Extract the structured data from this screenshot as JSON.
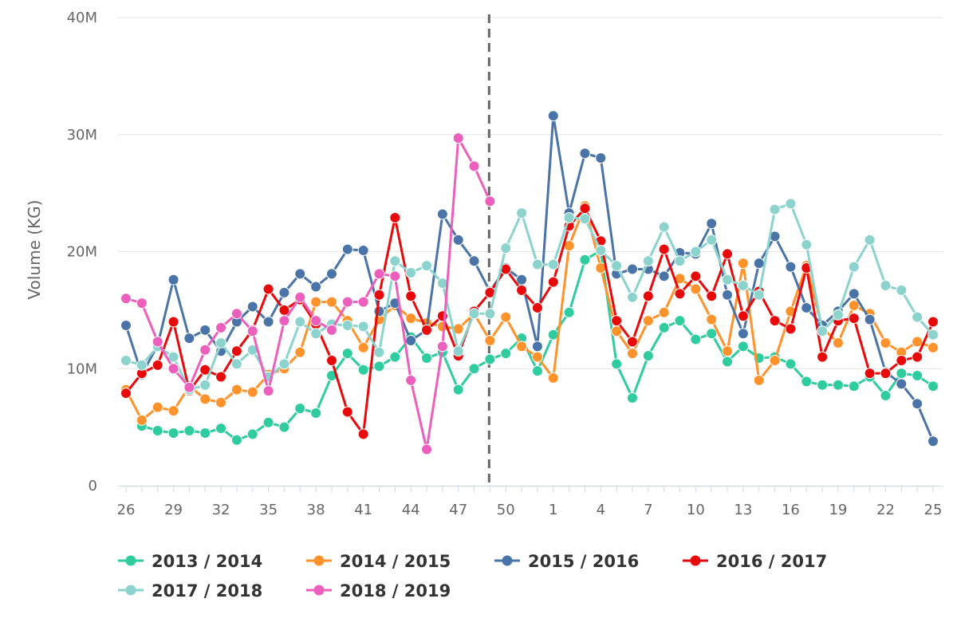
{
  "chart_data": {
    "type": "line",
    "title": "",
    "xlabel": "",
    "ylabel": "Volume (KG)",
    "ylim": [
      0,
      40000000
    ],
    "y_ticks": [
      0,
      10000000,
      20000000,
      30000000,
      40000000
    ],
    "y_tick_labels": [
      "0",
      "10M",
      "20M",
      "30M",
      "40M"
    ],
    "grid": true,
    "categories": [
      "26",
      "27",
      "28",
      "29",
      "30",
      "31",
      "32",
      "33",
      "34",
      "35",
      "36",
      "37",
      "38",
      "39",
      "40",
      "41",
      "42",
      "43",
      "44",
      "45",
      "46",
      "47",
      "48",
      "49",
      "50",
      "51",
      "52",
      "1",
      "2",
      "3",
      "4",
      "5",
      "6",
      "7",
      "8",
      "9",
      "10",
      "11",
      "12",
      "13",
      "14",
      "15",
      "16",
      "17",
      "18",
      "19",
      "20",
      "21",
      "22",
      "23",
      "24",
      "25"
    ],
    "x_tick_labels": [
      "26",
      "29",
      "32",
      "35",
      "38",
      "41",
      "44",
      "47",
      "50",
      "1",
      "4",
      "7",
      "10",
      "13",
      "16",
      "19",
      "22",
      "25"
    ],
    "x_tick_every": 3,
    "marker_after_category": "49",
    "legend_position": "bottom",
    "series": [
      {
        "name": "2013 / 2014",
        "color": "#2ecc9f",
        "values": [
          null,
          5.1,
          4.7,
          4.5,
          4.7,
          4.5,
          4.9,
          3.9,
          4.4,
          5.4,
          5.0,
          6.6,
          6.2,
          9.4,
          11.3,
          9.9,
          10.2,
          11.0,
          12.7,
          10.9,
          11.4,
          8.2,
          10.0,
          10.8,
          11.3,
          12.6,
          9.8,
          12.9,
          14.8,
          19.3,
          20.1,
          10.4,
          7.5,
          11.1,
          13.5,
          14.1,
          12.5,
          13.0,
          10.6,
          11.9,
          10.9,
          11.0,
          10.4,
          8.9,
          8.6,
          8.6,
          8.5,
          9.3,
          7.7,
          9.6,
          9.4,
          8.5
        ]
      },
      {
        "name": "2014 / 2015",
        "color": "#ff922b",
        "values": [
          8.2,
          5.6,
          6.7,
          6.4,
          8.5,
          7.4,
          7.1,
          8.2,
          8.0,
          9.5,
          10.0,
          11.4,
          15.7,
          15.7,
          14.1,
          11.8,
          14.2,
          15.4,
          14.3,
          13.9,
          13.6,
          13.4,
          14.7,
          12.4,
          14.4,
          11.9,
          11.0,
          9.2,
          20.5,
          23.9,
          18.6,
          13.2,
          11.3,
          14.1,
          14.8,
          17.7,
          16.8,
          14.2,
          11.5,
          19.0,
          9.0,
          10.7,
          14.9,
          18.8,
          13.5,
          12.2,
          15.4,
          14.7,
          12.2,
          11.4,
          12.3,
          11.8
        ]
      },
      {
        "name": "2015 / 2016",
        "color": "#4a74a8",
        "values": [
          13.7,
          9.5,
          12.0,
          17.6,
          12.6,
          13.3,
          11.5,
          14.0,
          15.3,
          14.0,
          16.5,
          18.1,
          17.0,
          18.1,
          20.2,
          20.1,
          14.9,
          15.6,
          12.4,
          13.3,
          23.2,
          21.0,
          19.2,
          16.6,
          18.6,
          17.6,
          11.9,
          31.6,
          23.3,
          28.4,
          28.0,
          18.1,
          18.5,
          18.5,
          17.9,
          19.9,
          19.8,
          22.4,
          16.3,
          13.0,
          19.0,
          21.3,
          18.7,
          15.2,
          13.7,
          14.9,
          16.4,
          14.2,
          9.7,
          8.7,
          7.0,
          3.8
        ]
      },
      {
        "name": "2016 / 2017",
        "color": "#e8090a",
        "values": [
          7.9,
          9.6,
          10.3,
          14.0,
          8.1,
          9.9,
          9.3,
          11.5,
          13.3,
          16.8,
          15.0,
          15.9,
          13.8,
          10.7,
          6.3,
          4.4,
          16.3,
          22.9,
          16.2,
          13.3,
          14.5,
          11.1,
          14.9,
          16.5,
          18.5,
          16.7,
          15.2,
          17.4,
          22.2,
          23.7,
          20.9,
          14.1,
          12.3,
          16.2,
          20.2,
          16.4,
          17.9,
          16.2,
          19.8,
          14.5,
          16.6,
          14.1,
          13.4,
          18.6,
          11.0,
          14.1,
          14.3,
          9.6,
          9.6,
          10.7,
          11.0,
          14.0
        ]
      },
      {
        "name": "2017 / 2018",
        "color": "#8dd3cd",
        "values": [
          10.7,
          10.3,
          11.9,
          11.0,
          8.2,
          8.6,
          12.2,
          10.4,
          11.6,
          9.3,
          10.4,
          14.0,
          13.0,
          13.8,
          13.7,
          13.6,
          11.4,
          19.2,
          18.2,
          18.8,
          17.3,
          11.5,
          14.7,
          14.7,
          20.3,
          23.3,
          18.9,
          18.9,
          22.9,
          22.8,
          20.1,
          18.8,
          16.1,
          19.2,
          22.1,
          19.2,
          20.0,
          21.0,
          17.6,
          17.1,
          16.3,
          23.6,
          24.1,
          20.6,
          13.2,
          14.6,
          18.7,
          21.0,
          17.1,
          16.7,
          14.4,
          12.9
        ]
      },
      {
        "name": "2018 / 2019",
        "color": "#ec5fbc",
        "values": [
          16.0,
          15.6,
          12.3,
          10.0,
          8.4,
          11.6,
          13.5,
          14.7,
          13.2,
          8.1,
          14.1,
          16.1,
          14.1,
          13.3,
          15.7,
          15.7,
          18.1,
          17.9,
          9.0,
          3.1,
          11.9,
          29.7,
          27.3,
          24.3,
          null,
          null,
          null,
          null,
          null,
          null,
          null,
          null,
          null,
          null,
          null,
          null,
          null,
          null,
          null,
          null,
          null,
          null,
          null,
          null,
          null,
          null,
          null,
          null,
          null,
          null,
          null,
          null
        ]
      }
    ],
    "value_unit": "M"
  }
}
